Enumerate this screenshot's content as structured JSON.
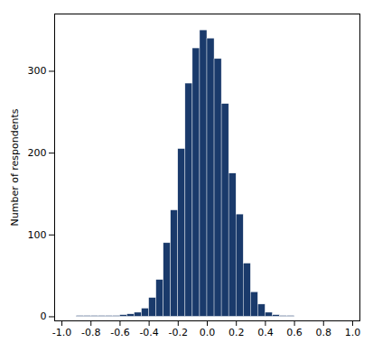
{
  "chart_data": {
    "type": "histogram",
    "ylabel": "Number of respondents",
    "bins": [
      -1.0,
      -0.95,
      -0.9,
      -0.85,
      -0.8,
      -0.75,
      -0.7,
      -0.65,
      -0.6,
      -0.55,
      -0.5,
      -0.45,
      -0.4,
      -0.35,
      -0.3,
      -0.25,
      -0.2,
      -0.15,
      -0.1,
      -0.05,
      0.0,
      0.05,
      0.1,
      0.15,
      0.2,
      0.25,
      0.3,
      0.35,
      0.4,
      0.45,
      0.5,
      0.55,
      0.6,
      0.65,
      0.7,
      0.75,
      0.8,
      0.85,
      0.9,
      0.95,
      1.0
    ],
    "values": [
      0,
      0,
      1,
      1,
      1,
      1,
      1,
      1,
      2,
      3,
      5,
      10,
      23,
      45,
      90,
      130,
      205,
      285,
      328,
      350,
      340,
      315,
      260,
      175,
      125,
      65,
      30,
      15,
      5,
      2,
      1,
      1,
      0,
      0,
      0,
      0,
      0,
      0,
      0,
      0
    ],
    "color": "#1a3a6b",
    "xlim": [
      -1.05,
      1.05
    ],
    "ylim": [
      -5,
      370
    ],
    "xticks": [
      {
        "value": -1.0,
        "label": "-1.0"
      },
      -0.8,
      -0.6,
      -0.4,
      -0.2,
      {
        "value": 0.0,
        "label": "0.0"
      },
      0.2,
      0.4,
      0.6,
      0.8,
      {
        "value": 1.0,
        "label": "1.0"
      }
    ],
    "yticks": [
      0,
      100,
      200,
      300
    ]
  }
}
